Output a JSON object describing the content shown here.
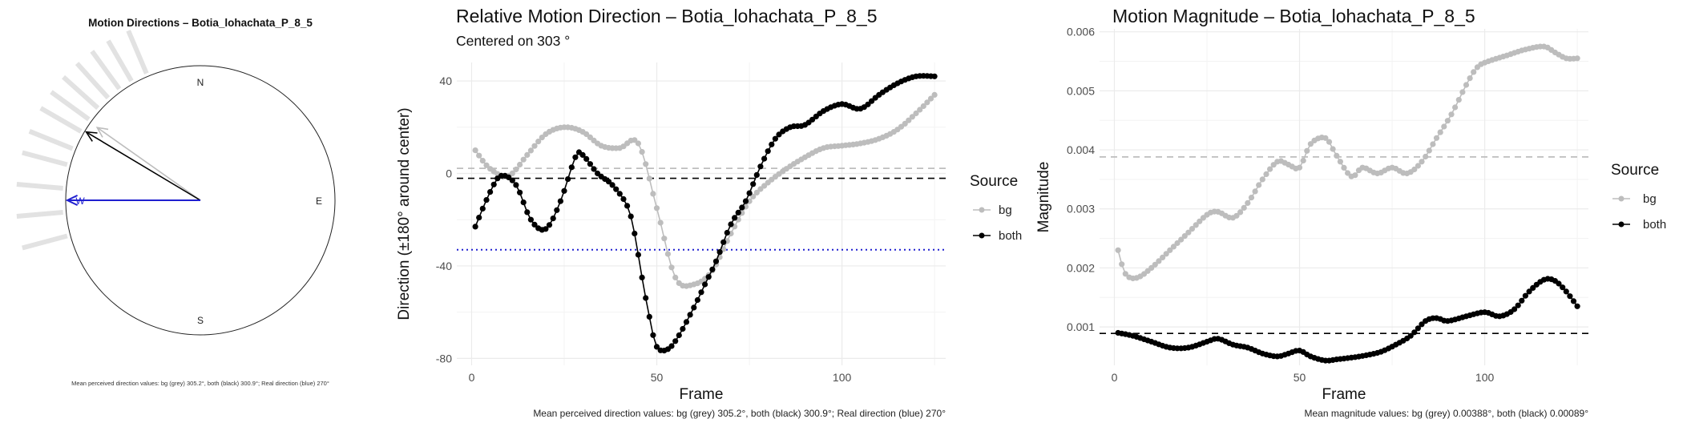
{
  "colors": {
    "bg": "#bdbdbd",
    "both": "#000000",
    "real": "#1f1fd0",
    "grid": "#ebebeb"
  },
  "compass": {
    "title": "Motion Directions – Botia_lohachata_P_8_5",
    "labels": {
      "n": "N",
      "e": "E",
      "s": "S",
      "w": "W"
    },
    "caption": "Mean perceived direction values: bg (grey) 305.2°, both (black) 300.9°; Real direction (blue) 270°",
    "arrows": [
      {
        "name": "bg",
        "angle_deg": 305.2,
        "length": 0.95
      },
      {
        "name": "both",
        "angle_deg": 300.9,
        "length": 1.0
      },
      {
        "name": "real",
        "angle_deg": 270,
        "length": 1.0
      }
    ],
    "rays_deg": [
      255,
      265,
      275,
      285,
      292,
      300,
      306,
      312,
      318,
      324,
      330,
      337
    ]
  },
  "direction_chart": {
    "title": "Relative Motion Direction – Botia_lohachata_P_8_5",
    "subtitle": "Centered on  303 °",
    "caption": "Mean perceived direction values: bg (grey) 305.2°, both (black) 300.9°; Real direction (blue) 270°",
    "legend_title": "Source",
    "legend": [
      "bg",
      "both"
    ]
  },
  "magnitude_chart": {
    "title": "Motion Magnitude – Botia_lohachata_P_8_5",
    "caption": "Mean magnitude values: bg (grey) 0.00388°, both (black) 0.00089°",
    "legend_title": "Source",
    "legend": [
      "bg",
      "both"
    ]
  },
  "chart_data": [
    {
      "type": "line",
      "title": "Relative Motion Direction – Botia_lohachata_P_8_5",
      "subtitle": "Centered on  303 °",
      "xlabel": "Frame",
      "ylabel": "Direction (±180° around center)",
      "xlim": [
        -4,
        128
      ],
      "ylim": [
        -83,
        48
      ],
      "xticks": [
        0,
        50,
        100
      ],
      "yticks": [
        -80,
        -40,
        0,
        40
      ],
      "grid": true,
      "legend": "right",
      "hlines": [
        {
          "series": "bg",
          "y": 2.2,
          "style": "dashed"
        },
        {
          "series": "both",
          "y": -2.1,
          "style": "dashed"
        },
        {
          "series": "real",
          "y": -33,
          "style": "dotted"
        }
      ],
      "series": [
        {
          "name": "bg",
          "x": [
            1,
            5,
            10,
            15,
            20,
            25,
            30,
            35,
            40,
            45,
            50,
            55,
            60,
            65,
            70,
            75,
            80,
            85,
            90,
            95,
            100,
            105,
            110,
            115,
            120,
            125
          ],
          "values": [
            10,
            2,
            -1,
            8,
            17,
            20,
            18,
            12,
            11,
            13,
            -15,
            -45,
            -48,
            -42,
            -26,
            -12,
            -4,
            2,
            7,
            11,
            12,
            13,
            15,
            19,
            26,
            34
          ]
        },
        {
          "name": "both",
          "x": [
            1,
            5,
            8,
            12,
            16,
            20,
            24,
            28,
            30,
            34,
            38,
            42,
            44,
            46,
            48,
            50,
            53,
            56,
            60,
            63,
            66,
            70,
            74,
            78,
            82,
            86,
            90,
            95,
            100,
            105,
            110,
            115,
            120,
            125
          ],
          "values": [
            -23,
            -8,
            -1,
            -5,
            -20,
            -24,
            -12,
            7,
            8,
            0,
            -5,
            -14,
            -26,
            -45,
            -62,
            -75,
            -76,
            -70,
            -58,
            -48,
            -38,
            -22,
            -12,
            3,
            15,
            20,
            21,
            27,
            30,
            28,
            34,
            39,
            42,
            42
          ]
        }
      ]
    },
    {
      "type": "line",
      "title": "Motion Magnitude – Botia_lohachata_P_8_5",
      "xlabel": "Frame",
      "ylabel": "Magnitude",
      "xlim": [
        -4,
        128
      ],
      "ylim": [
        0.00035,
        0.00605
      ],
      "xticks": [
        0,
        50,
        100
      ],
      "yticks": [
        0.001,
        0.002,
        0.003,
        0.004,
        0.005,
        0.006
      ],
      "grid": true,
      "legend": "right",
      "hlines": [
        {
          "series": "bg",
          "y": 0.00388,
          "style": "dashed"
        },
        {
          "series": "both",
          "y": 0.00089,
          "style": "dashed"
        }
      ],
      "series": [
        {
          "name": "bg",
          "x": [
            1,
            3,
            6,
            10,
            15,
            20,
            25,
            28,
            32,
            36,
            40,
            44,
            47,
            50,
            53,
            57,
            60,
            64,
            67,
            71,
            75,
            79,
            83,
            87,
            91,
            95,
            98,
            101,
            106,
            111,
            116,
            119,
            122,
            125
          ],
          "values": [
            0.0023,
            0.0019,
            0.00183,
            0.002,
            0.0023,
            0.0026,
            0.0029,
            0.00295,
            0.00285,
            0.0031,
            0.0035,
            0.0038,
            0.00375,
            0.0037,
            0.0041,
            0.0042,
            0.0039,
            0.00355,
            0.0037,
            0.0036,
            0.0037,
            0.0036,
            0.0038,
            0.0042,
            0.0046,
            0.0051,
            0.0054,
            0.0055,
            0.0056,
            0.0057,
            0.00575,
            0.00565,
            0.00555,
            0.00555
          ]
        },
        {
          "name": "both",
          "x": [
            1,
            5,
            10,
            15,
            20,
            25,
            28,
            32,
            36,
            40,
            44,
            47,
            50,
            53,
            57,
            60,
            64,
            68,
            72,
            76,
            80,
            84,
            87,
            90,
            95,
            100,
            104,
            108,
            112,
            116,
            119,
            122,
            125
          ],
          "values": [
            0.0009,
            0.00085,
            0.00075,
            0.00065,
            0.00065,
            0.00075,
            0.0008,
            0.0007,
            0.00065,
            0.00055,
            0.0005,
            0.00055,
            0.0006,
            0.0005,
            0.00043,
            0.00045,
            0.00048,
            0.00052,
            0.00058,
            0.0007,
            0.00085,
            0.0011,
            0.00115,
            0.0011,
            0.00118,
            0.00125,
            0.00118,
            0.0013,
            0.0016,
            0.0018,
            0.00178,
            0.0016,
            0.00135
          ]
        }
      ]
    }
  ]
}
